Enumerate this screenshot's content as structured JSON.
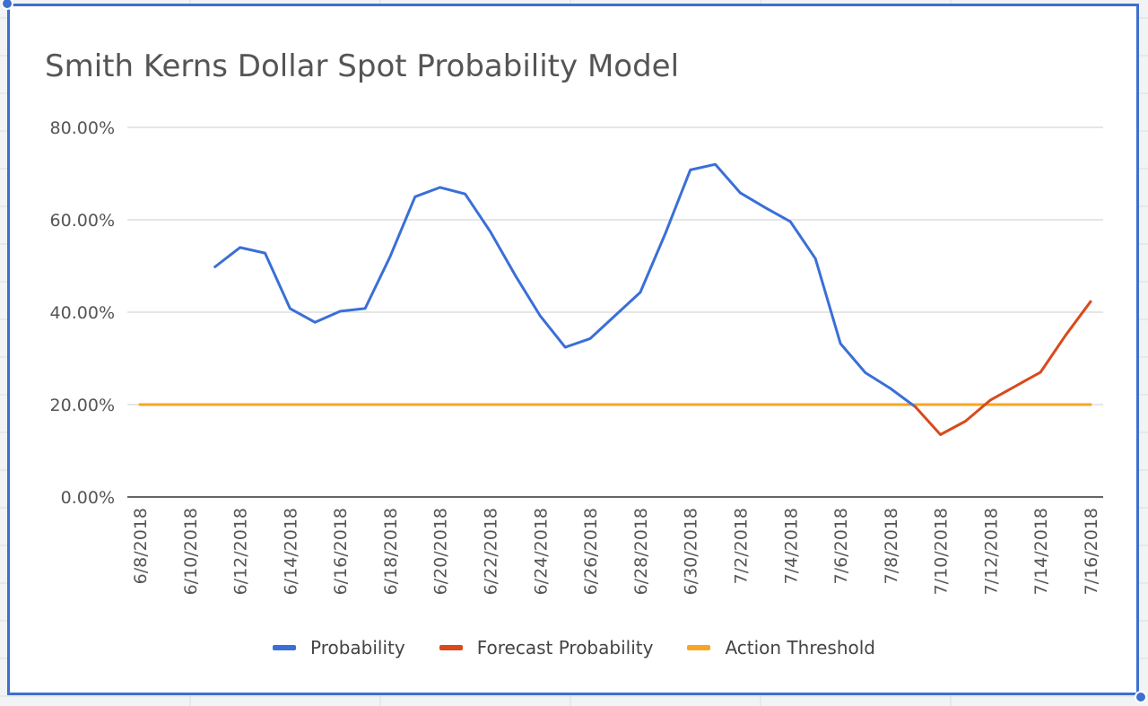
{
  "colors": {
    "probability": "#3a6fd8",
    "forecast": "#d84a1c",
    "threshold": "#f6a623",
    "selection": "#3c6fd0",
    "gridline": "#cccccc",
    "baseline": "#333333",
    "text": "#555555"
  },
  "chart_data": {
    "type": "line",
    "title": "Smith Kerns Dollar Spot Probability Model",
    "xlabel": "",
    "ylabel": "",
    "ylim": [
      0,
      80
    ],
    "y_ticks": [
      "0.00%",
      "20.00%",
      "40.00%",
      "60.00%",
      "80.00%"
    ],
    "x_ticks": [
      "6/8/2018",
      "6/10/2018",
      "6/12/2018",
      "6/14/2018",
      "6/16/2018",
      "6/18/2018",
      "6/20/2018",
      "6/22/2018",
      "6/24/2018",
      "6/26/2018",
      "6/28/2018",
      "6/30/2018",
      "7/2/2018",
      "7/4/2018",
      "7/6/2018",
      "7/8/2018",
      "7/10/2018",
      "7/12/2018",
      "7/14/2018",
      "7/16/2018"
    ],
    "grid": true,
    "legend_position": "bottom",
    "series": [
      {
        "name": "Probability",
        "color_key": "probability",
        "points": [
          [
            "6/11/2018",
            49.8
          ],
          [
            "6/12/2018",
            54.0
          ],
          [
            "6/13/2018",
            52.8
          ],
          [
            "6/14/2018",
            40.8
          ],
          [
            "6/15/2018",
            37.8
          ],
          [
            "6/16/2018",
            40.2
          ],
          [
            "6/17/2018",
            40.8
          ],
          [
            "6/18/2018",
            52.0
          ],
          [
            "6/19/2018",
            65.0
          ],
          [
            "6/20/2018",
            67.0
          ],
          [
            "6/21/2018",
            65.6
          ],
          [
            "6/22/2018",
            57.5
          ],
          [
            "6/23/2018",
            48.0
          ],
          [
            "6/24/2018",
            39.2
          ],
          [
            "6/25/2018",
            32.4
          ],
          [
            "6/26/2018",
            34.3
          ],
          [
            "6/27/2018",
            39.3
          ],
          [
            "6/28/2018",
            44.3
          ],
          [
            "6/29/2018",
            57.0
          ],
          [
            "6/30/2018",
            70.8
          ],
          [
            "7/1/2018",
            72.0
          ],
          [
            "7/2/2018",
            65.8
          ],
          [
            "7/3/2018",
            62.6
          ],
          [
            "7/4/2018",
            59.6
          ],
          [
            "7/5/2018",
            51.6
          ],
          [
            "7/6/2018",
            33.2
          ],
          [
            "7/7/2018",
            26.9
          ],
          [
            "7/8/2018",
            23.5
          ],
          [
            "7/9/2018",
            19.5
          ]
        ]
      },
      {
        "name": "Forecast Probability",
        "color_key": "forecast",
        "points": [
          [
            "7/9/2018",
            19.5
          ],
          [
            "7/10/2018",
            13.5
          ],
          [
            "7/11/2018",
            16.4
          ],
          [
            "7/12/2018",
            21.0
          ],
          [
            "7/13/2018",
            24.0
          ],
          [
            "7/14/2018",
            27.0
          ],
          [
            "7/15/2018",
            35.0
          ],
          [
            "7/16/2018",
            42.3
          ]
        ]
      },
      {
        "name": "Action Threshold",
        "color_key": "threshold",
        "points": [
          [
            "6/8/2018",
            20.0
          ],
          [
            "7/16/2018",
            20.0
          ]
        ]
      }
    ]
  }
}
